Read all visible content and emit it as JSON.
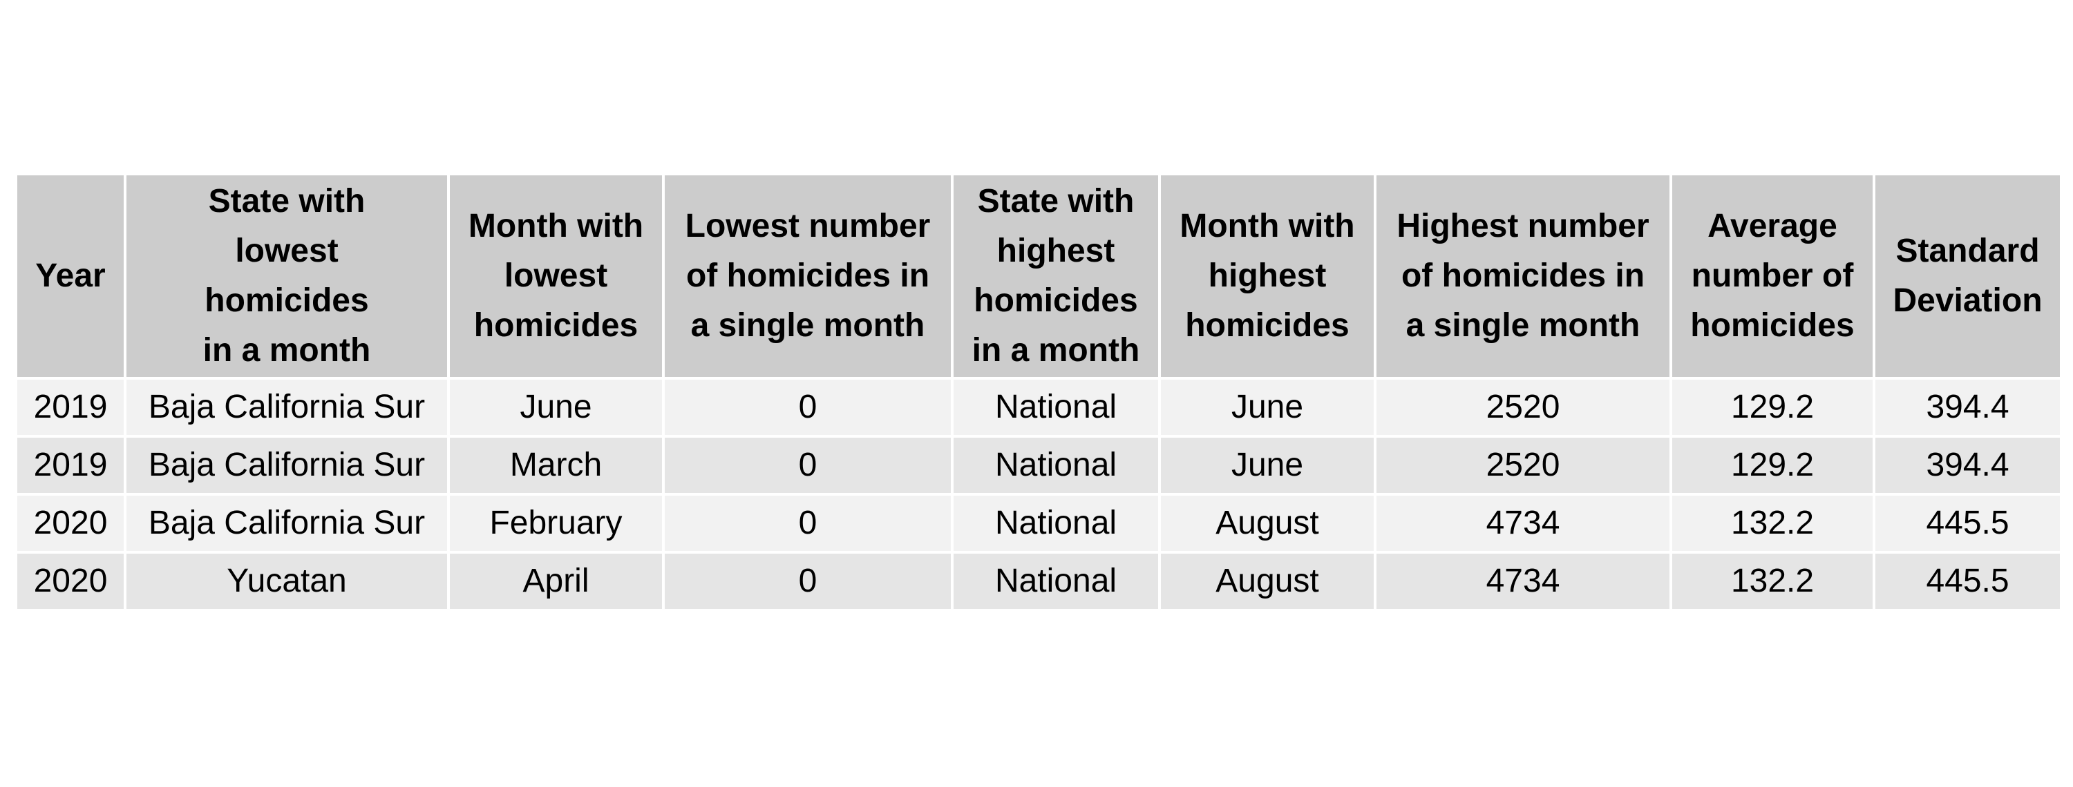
{
  "chart_data": {
    "type": "table",
    "columns": [
      [
        "Year"
      ],
      [
        "State with",
        "lowest",
        "homicides",
        "in a month"
      ],
      [
        "Month with",
        "lowest",
        "homicides"
      ],
      [
        "Lowest number",
        "of homicides in",
        "a single month"
      ],
      [
        "State with",
        "highest",
        "homicides",
        "in a month"
      ],
      [
        "Month with",
        "highest",
        "homicides"
      ],
      [
        "Highest number",
        "of homicides in",
        "a single month"
      ],
      [
        "Average",
        "number of",
        "homicides"
      ],
      [
        "Standard",
        "Deviation"
      ]
    ],
    "rows": [
      [
        "2019",
        "Baja California Sur",
        "June",
        "0",
        "National",
        "June",
        "2520",
        "129.2",
        "394.4"
      ],
      [
        "2019",
        "Baja California Sur",
        "March",
        "0",
        "National",
        "June",
        "2520",
        "129.2",
        "394.4"
      ],
      [
        "2020",
        "Baja California Sur",
        "February",
        "0",
        "National",
        "August",
        "4734",
        "132.2",
        "445.5"
      ],
      [
        "2020",
        "Yucatan",
        "April",
        "0",
        "National",
        "August",
        "4734",
        "132.2",
        "445.5"
      ]
    ]
  },
  "colors": {
    "header_bg": "#cccccc",
    "row_light": "#f2f2f2",
    "row_dark": "#e5e5e5",
    "grid_lines": "#ffffff"
  }
}
